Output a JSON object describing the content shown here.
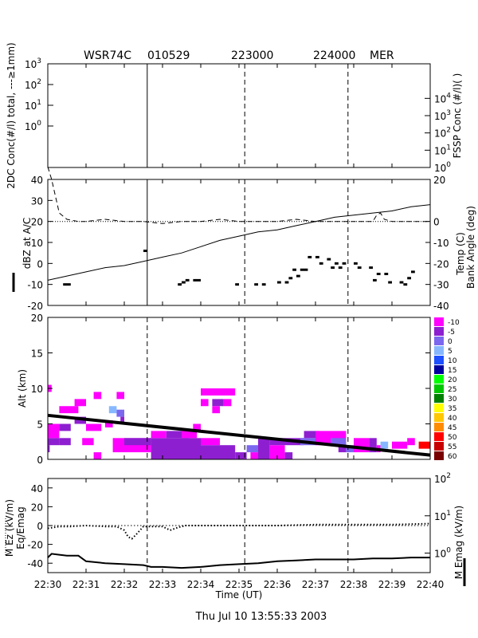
{
  "header": {
    "radar": "WSR74C",
    "date": "010529",
    "time1": "223000",
    "time2": "224000",
    "station": "MER"
  },
  "footer": {
    "timestamp": "Thu Jul 10 13:55:33 2003"
  },
  "chart_data": [
    {
      "type": "line",
      "panel": "concentration",
      "ylabel_left": "2DC Conc(#/l) total, ---≥1mm)",
      "ylabel_right": "FSSP Conc (#/l)( )",
      "left_axis": {
        "scale": "log",
        "ylim": [
          0.01,
          1000
        ],
        "ticks": [
          {
            "base": "10",
            "exp": "3",
            "v": 1000
          },
          {
            "base": "10",
            "exp": "2",
            "v": 100
          },
          {
            "base": "10",
            "exp": "1",
            "v": 10
          },
          {
            "base": "10",
            "exp": "0",
            "v": 1
          }
        ]
      },
      "right_axis": {
        "scale": "log",
        "ylim": [
          1,
          1000000
        ],
        "ticks": [
          {
            "base": "10",
            "exp": "4",
            "v": 10000
          },
          {
            "base": "10",
            "exp": "3",
            "v": 1000
          },
          {
            "base": "10",
            "exp": "2",
            "v": 100
          },
          {
            "base": "10",
            "exp": "1",
            "v": 10
          },
          {
            "base": "10",
            "exp": "0",
            "v": 1
          }
        ]
      },
      "series": []
    },
    {
      "type": "line",
      "panel": "dbz-temp",
      "ylabel_left": "dBZ at A/C",
      "ylabel_right_temp": "Temp (C)",
      "ylabel_right_bank": "Bank Angle (deg)",
      "left_axis": {
        "ylim": [
          -20,
          40
        ],
        "ticks": [
          40,
          30,
          20,
          10,
          0,
          -10,
          -20
        ]
      },
      "right_axis": {
        "ylim": [
          -40,
          20
        ],
        "ticks": [
          20,
          0,
          -10,
          -20,
          -30,
          -40
        ]
      },
      "series": [
        {
          "role": "dbz",
          "style": "thick",
          "axis": "left",
          "x": [
            30.4,
            30.5,
            30.5,
            30.6,
            32.5,
            32.6,
            33.4,
            33.5,
            33.5,
            33.6,
            33.6,
            33.7,
            33.8,
            34.0,
            34.9,
            35.0,
            35.4,
            35.5,
            35.6,
            35.7,
            36.0,
            36.1,
            36.2,
            36.3,
            36.3,
            36.4,
            36.4,
            36.5,
            36.5,
            36.6,
            36.6,
            36.8,
            36.8,
            36.9,
            37.0,
            37.1,
            37.1,
            37.2,
            37.3,
            37.4,
            37.4,
            37.5,
            37.5,
            37.6,
            37.6,
            37.7,
            37.7,
            37.8,
            38.0,
            38.1,
            38.1,
            38.2,
            38.4,
            38.5,
            38.5,
            38.6,
            38.6,
            38.7,
            38.8,
            38.9,
            38.9,
            39.0,
            39.2,
            39.3,
            39.3,
            39.4,
            39.4,
            39.5,
            39.5,
            39.6
          ],
          "y": [
            -10,
            -10,
            -10,
            -10,
            6,
            6,
            -10,
            -10,
            -9,
            -9,
            -8,
            -8,
            -8,
            -8,
            -10,
            -10,
            -10,
            -10,
            -10,
            -10,
            -9,
            -9,
            -9,
            -9,
            -7,
            -7,
            -3,
            -3,
            -6,
            -6,
            -3,
            -3,
            3,
            3,
            3,
            3,
            0,
            0,
            2,
            2,
            -2,
            -2,
            0,
            0,
            -2,
            -2,
            0,
            0,
            0,
            0,
            -2,
            -2,
            -2,
            -2,
            -8,
            -8,
            -5,
            -5,
            -5,
            -5,
            -9,
            -9,
            -9,
            -9,
            -10,
            -10,
            -7,
            -7,
            -4,
            -4
          ]
        },
        {
          "role": "temp",
          "style": "solid",
          "axis": "right",
          "x": [
            30.0,
            30.5,
            31.0,
            31.5,
            32.0,
            32.5,
            33.0,
            33.5,
            34.0,
            34.5,
            35.0,
            35.5,
            36.0,
            36.5,
            37.0,
            37.5,
            38.0,
            38.5,
            39.0,
            39.5,
            40.0
          ],
          "y": [
            -28,
            -26,
            -24,
            -22,
            -21,
            -19,
            -17,
            -15,
            -12,
            -9,
            -7,
            -5,
            -4,
            -2,
            0,
            2,
            3,
            4,
            5,
            7,
            8
          ]
        },
        {
          "role": "bank",
          "style": "dashed",
          "axis": "right",
          "x": [
            30.0,
            30.1,
            30.2,
            30.3,
            30.5,
            30.8,
            31.0,
            31.5,
            32.0,
            32.5,
            33.0,
            33.5,
            34.0,
            34.5,
            35.0,
            35.5,
            36.0,
            36.5,
            37.0,
            37.5,
            38.0,
            38.5,
            38.6,
            38.7,
            38.8,
            39.0,
            39.5,
            40.0
          ],
          "y": [
            26,
            20,
            12,
            4,
            1,
            0,
            0,
            1,
            0,
            0,
            -1,
            0,
            0,
            1,
            0,
            0,
            0,
            1,
            0,
            0,
            0,
            0,
            3,
            4,
            1,
            0,
            0,
            0
          ]
        },
        {
          "role": "zero-line",
          "style": "dotted",
          "axis": "right",
          "x": [
            30.0,
            40.0
          ],
          "y": [
            0,
            0
          ]
        }
      ]
    },
    {
      "type": "heatmap",
      "panel": "radar-reflectivity",
      "ylabel": "Alt (km)",
      "y_axis": {
        "ylim": [
          0,
          20
        ],
        "ticks": [
          20,
          15,
          10,
          5,
          0
        ]
      },
      "colorbar": {
        "levels": [
          "-10",
          "-5",
          "0",
          "5",
          "10",
          "15",
          "20",
          "25",
          "30",
          "35",
          "40",
          "45",
          "50",
          "55",
          "60"
        ],
        "colors": [
          "#ff00ff",
          "#8e1fd0",
          "#7b68ee",
          "#87b8ff",
          "#1e50ff",
          "#0000a0",
          "#00ff00",
          "#00c800",
          "#008000",
          "#ffff00",
          "#ffc800",
          "#ff8c00",
          "#ff0000",
          "#c80000",
          "#780000"
        ]
      },
      "cells": [
        {
          "x": 30.0,
          "y": 9.5,
          "dx": 0.1,
          "dy": 1,
          "c": 0
        },
        {
          "x": 30.0,
          "y": 1.0,
          "dx": 0.05,
          "dy": 1,
          "c": 1
        },
        {
          "x": 30.0,
          "y": 2.0,
          "dx": 0.3,
          "dy": 1,
          "c": 1
        },
        {
          "x": 30.0,
          "y": 3.0,
          "dx": 0.3,
          "dy": 2,
          "c": 0
        },
        {
          "x": 30.3,
          "y": 6.5,
          "dx": 0.5,
          "dy": 1,
          "c": 0
        },
        {
          "x": 30.3,
          "y": 2.0,
          "dx": 0.3,
          "dy": 1,
          "c": 1
        },
        {
          "x": 30.3,
          "y": 4.0,
          "dx": 0.3,
          "dy": 1,
          "c": 1
        },
        {
          "x": 30.7,
          "y": 7.5,
          "dx": 0.3,
          "dy": 1,
          "c": 0
        },
        {
          "x": 30.7,
          "y": 5.0,
          "dx": 0.3,
          "dy": 1,
          "c": 1
        },
        {
          "x": 30.9,
          "y": 2.0,
          "dx": 0.3,
          "dy": 1,
          "c": 0
        },
        {
          "x": 31.2,
          "y": 8.5,
          "dx": 0.2,
          "dy": 1,
          "c": 0
        },
        {
          "x": 31.0,
          "y": 4.0,
          "dx": 0.4,
          "dy": 1,
          "c": 0
        },
        {
          "x": 31.2,
          "y": 0.0,
          "dx": 0.2,
          "dy": 1,
          "c": 0
        },
        {
          "x": 31.5,
          "y": 4.5,
          "dx": 0.2,
          "dy": 1,
          "c": 0
        },
        {
          "x": 31.6,
          "y": 6.5,
          "dx": 0.2,
          "dy": 1,
          "c": 3
        },
        {
          "x": 31.8,
          "y": 6.0,
          "dx": 0.2,
          "dy": 1,
          "c": 2
        },
        {
          "x": 31.8,
          "y": 8.5,
          "dx": 0.2,
          "dy": 1,
          "c": 0
        },
        {
          "x": 31.9,
          "y": 5.0,
          "dx": 0.1,
          "dy": 1,
          "c": 1
        },
        {
          "x": 31.7,
          "y": 1.0,
          "dx": 1.0,
          "dy": 2,
          "c": 0
        },
        {
          "x": 32.0,
          "y": 2.0,
          "dx": 0.7,
          "dy": 1,
          "c": 1
        },
        {
          "x": 32.7,
          "y": 0.0,
          "dx": 1.3,
          "dy": 3,
          "c": 1
        },
        {
          "x": 32.7,
          "y": 3.0,
          "dx": 0.4,
          "dy": 1,
          "c": 0
        },
        {
          "x": 33.1,
          "y": 3.0,
          "dx": 0.6,
          "dy": 1,
          "c": 1
        },
        {
          "x": 33.5,
          "y": 3.0,
          "dx": 0.4,
          "dy": 1,
          "c": 0
        },
        {
          "x": 33.8,
          "y": 4.0,
          "dx": 0.2,
          "dy": 1,
          "c": 0
        },
        {
          "x": 34.0,
          "y": 0.0,
          "dx": 0.9,
          "dy": 2,
          "c": 1
        },
        {
          "x": 34.0,
          "y": 2.0,
          "dx": 0.5,
          "dy": 1,
          "c": 0
        },
        {
          "x": 34.0,
          "y": 9.0,
          "dx": 0.9,
          "dy": 1,
          "c": 0
        },
        {
          "x": 34.0,
          "y": 7.5,
          "dx": 0.2,
          "dy": 1,
          "c": 0
        },
        {
          "x": 34.3,
          "y": 7.5,
          "dx": 0.3,
          "dy": 1,
          "c": 1
        },
        {
          "x": 34.6,
          "y": 7.5,
          "dx": 0.2,
          "dy": 1,
          "c": 0
        },
        {
          "x": 34.3,
          "y": 6.5,
          "dx": 0.2,
          "dy": 1,
          "c": 0
        },
        {
          "x": 34.9,
          "y": 0.0,
          "dx": 0.3,
          "dy": 1,
          "c": 1
        },
        {
          "x": 35.2,
          "y": 1.0,
          "dx": 0.3,
          "dy": 1,
          "c": 2
        },
        {
          "x": 35.3,
          "y": 0.0,
          "dx": 0.4,
          "dy": 1,
          "c": 0
        },
        {
          "x": 35.5,
          "y": 0.0,
          "dx": 0.3,
          "dy": 3,
          "c": 1
        },
        {
          "x": 35.8,
          "y": 0.0,
          "dx": 0.4,
          "dy": 2,
          "c": 0
        },
        {
          "x": 36.2,
          "y": 0.0,
          "dx": 0.2,
          "dy": 1,
          "c": 1
        },
        {
          "x": 35.8,
          "y": 2.0,
          "dx": 0.9,
          "dy": 1,
          "c": 1
        },
        {
          "x": 36.6,
          "y": 2.0,
          "dx": 0.5,
          "dy": 1,
          "c": 2
        },
        {
          "x": 36.7,
          "y": 3.0,
          "dx": 0.4,
          "dy": 1,
          "c": 1
        },
        {
          "x": 37.0,
          "y": 2.0,
          "dx": 0.8,
          "dy": 2,
          "c": 0
        },
        {
          "x": 37.4,
          "y": 2.0,
          "dx": 0.4,
          "dy": 1,
          "c": 2
        },
        {
          "x": 37.6,
          "y": 1.0,
          "dx": 0.2,
          "dy": 1,
          "c": 1
        },
        {
          "x": 37.8,
          "y": 1.0,
          "dx": 0.2,
          "dy": 1,
          "c": 2
        },
        {
          "x": 38.0,
          "y": 1.0,
          "dx": 0.4,
          "dy": 2,
          "c": 0
        },
        {
          "x": 38.4,
          "y": 1.0,
          "dx": 0.2,
          "dy": 2,
          "c": 1
        },
        {
          "x": 38.6,
          "y": 1.0,
          "dx": 0.1,
          "dy": 1,
          "c": 0
        },
        {
          "x": 38.7,
          "y": 1.5,
          "dx": 0.2,
          "dy": 1,
          "c": 3
        },
        {
          "x": 39.0,
          "y": 1.5,
          "dx": 0.4,
          "dy": 1,
          "c": 0
        },
        {
          "x": 39.4,
          "y": 2.0,
          "dx": 0.2,
          "dy": 1,
          "c": 0
        },
        {
          "x": 39.7,
          "y": 1.5,
          "dx": 0.3,
          "dy": 1,
          "c": 12
        }
      ],
      "flight_track": {
        "x": [
          30.0,
          40.0
        ],
        "y": [
          6.2,
          0.6
        ]
      }
    },
    {
      "type": "line",
      "panel": "electric-field",
      "ylabel_left_1": "M Ez (kV/m)",
      "ylabel_left_2": "Eq/Emag",
      "ylabel_right": "M Emag (kV/m)",
      "left_axis": {
        "ylim": [
          -50,
          50
        ],
        "ticks": [
          40,
          20,
          0,
          -20,
          -40
        ]
      },
      "right_axis": {
        "scale": "log",
        "ylim": [
          0.3,
          100
        ],
        "ticks": [
          {
            "base": "10",
            "exp": "2",
            "v": 100
          },
          {
            "base": "10",
            "exp": "1",
            "v": 10
          },
          {
            "base": "10",
            "exp": "0",
            "v": 1
          }
        ]
      },
      "xlabel": "Time (UT)",
      "x_ticks": [
        "22:30",
        "22:31",
        "22:32",
        "22:33",
        "22:34",
        "22:35",
        "22:36",
        "22:37",
        "22:38",
        "22:39",
        "22:40"
      ],
      "series": [
        {
          "role": "ez",
          "style": "dotted",
          "axis": "left",
          "x": [
            30.0,
            30.3,
            30.6,
            31.0,
            31.5,
            31.8,
            32.0,
            32.1,
            32.2,
            32.3,
            32.5,
            33.0,
            33.2,
            33.4,
            33.6,
            34.0,
            35.0,
            36.0,
            37.0,
            38.0,
            39.0,
            40.0
          ],
          "y": [
            -3,
            -1,
            -1,
            0,
            -1,
            -1,
            -5,
            -12,
            -14,
            -10,
            -1,
            -1,
            -5,
            -2,
            0,
            0,
            0,
            0,
            1,
            1,
            1,
            2
          ]
        },
        {
          "role": "emag",
          "style": "solid",
          "axis": "left",
          "x": [
            30.0,
            30.1,
            30.3,
            30.5,
            30.8,
            31.0,
            31.5,
            32.0,
            32.5,
            32.7,
            33.0,
            33.5,
            34.0,
            34.5,
            35.0,
            35.5,
            36.0,
            36.5,
            37.0,
            37.5,
            38.0,
            38.5,
            39.0,
            39.5,
            40.0
          ],
          "y": [
            -34,
            -30,
            -31,
            -32,
            -32,
            -38,
            -40,
            -41,
            -42,
            -44,
            -44,
            -45,
            -44,
            -42,
            -41,
            -40,
            -38,
            -37,
            -36,
            -36,
            -36,
            -35,
            -35,
            -34,
            -34
          ]
        },
        {
          "role": "zero-line",
          "style": "dotted",
          "axis": "left",
          "x": [
            30.0,
            40.0
          ],
          "y": [
            0,
            0
          ]
        }
      ]
    }
  ]
}
